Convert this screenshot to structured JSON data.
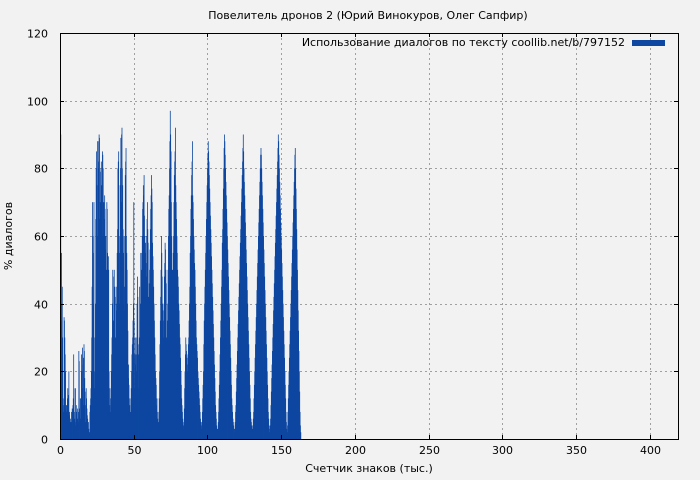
{
  "chart_data": {
    "type": "bar",
    "title": "Повелитель дронов 2 (Юрий Винокуров, Олег Сапфир)",
    "xlabel": "Счетчик знаков (тыс.)",
    "ylabel": "% диалогов",
    "xlim": [
      0,
      419
    ],
    "ylim": [
      0,
      120
    ],
    "xticks": [
      0,
      50,
      100,
      150,
      200,
      250,
      300,
      350,
      400
    ],
    "yticks": [
      0,
      20,
      40,
      60,
      80,
      100,
      120
    ],
    "grid": true,
    "legend_position": "top-right",
    "series": [
      {
        "name": "Использование диалогов по тексту coollib.net/b/797152",
        "color": "#0d47a1",
        "x_start": 0,
        "x_step": 0.25,
        "values": [
          94,
          90,
          40,
          55,
          35,
          45,
          30,
          12,
          10,
          8,
          36,
          35,
          30,
          25,
          20,
          9,
          10,
          8,
          10,
          12,
          15,
          13,
          8,
          20,
          7,
          8,
          5,
          6,
          5,
          5,
          8,
          5,
          9,
          8,
          10,
          12,
          25,
          15,
          8,
          6,
          5,
          15,
          4,
          10,
          8,
          5,
          9,
          6,
          5,
          8,
          26,
          23,
          7,
          9,
          12,
          6,
          12,
          25,
          20,
          15,
          27,
          22,
          24,
          10,
          28,
          26,
          18,
          14,
          10,
          5,
          15,
          12,
          9,
          7,
          6,
          4,
          5,
          3,
          2,
          1,
          8,
          10,
          12,
          15,
          20,
          30,
          45,
          70,
          60,
          40,
          55,
          70,
          20,
          15,
          30,
          40,
          65,
          80,
          85,
          75,
          60,
          88,
          88,
          80,
          82,
          90,
          89,
          65,
          70,
          79,
          80,
          82,
          75,
          60,
          85,
          84,
          80,
          60,
          70,
          65,
          72,
          68,
          56,
          60,
          50,
          48,
          70,
          68,
          55,
          52,
          54,
          50,
          20,
          15,
          10,
          8,
          12,
          15,
          20,
          25,
          30,
          40,
          50,
          35,
          28,
          48,
          50,
          45,
          42,
          30,
          30,
          45,
          40,
          38,
          55,
          62,
          80,
          82,
          85,
          60,
          40,
          55,
          75,
          80,
          89,
          70,
          90,
          92,
          80,
          75,
          62,
          40,
          55,
          60,
          45,
          38,
          78,
          82,
          86,
          60,
          55,
          50,
          40,
          32,
          18,
          22,
          16,
          12,
          10,
          8,
          6,
          12,
          15,
          20,
          25,
          28,
          30,
          35,
          40,
          70,
          35,
          25,
          15,
          30,
          22,
          25,
          20,
          30,
          40,
          48,
          42,
          28,
          15,
          25,
          30,
          45,
          35,
          40,
          55,
          50,
          45,
          55,
          60,
          68,
          70,
          75,
          72,
          78,
          66,
          60,
          55,
          58,
          52,
          48,
          60,
          65,
          70,
          62,
          58,
          40,
          42,
          46,
          50,
          56,
          62,
          68,
          72,
          78,
          74,
          70,
          58,
          54,
          50,
          45,
          40,
          35,
          30,
          25,
          20,
          18,
          16,
          10,
          12,
          8,
          6,
          5,
          4,
          8,
          12,
          20,
          28,
          35,
          42,
          50,
          60,
          55,
          48,
          40,
          38,
          35,
          30,
          40,
          48,
          52,
          58,
          56,
          50,
          46,
          30,
          25,
          35,
          40,
          50,
          60,
          68,
          72,
          80,
          88,
          97,
          90,
          85,
          70,
          60,
          50,
          45,
          50,
          55,
          60,
          70,
          78,
          82,
          85,
          92,
          75,
          70,
          65,
          60,
          55,
          50,
          48,
          45,
          40,
          38,
          34,
          30,
          28,
          24,
          20,
          16,
          12,
          10,
          8,
          6,
          4,
          3,
          5,
          9,
          15,
          20,
          25,
          30,
          28,
          26,
          24,
          20,
          22,
          25,
          28,
          30,
          35,
          40,
          45,
          55,
          60,
          68,
          72,
          78,
          82,
          88,
          72,
          70,
          65,
          60,
          56,
          52,
          50,
          45,
          40,
          35,
          30,
          28,
          26,
          24,
          20,
          18,
          16,
          14,
          12,
          10,
          8,
          6,
          5,
          4,
          3,
          5,
          8,
          12,
          16,
          20,
          28,
          35,
          40,
          45,
          50,
          55,
          60,
          65,
          70,
          75,
          80,
          84,
          88,
          85,
          82,
          78,
          74,
          70,
          66,
          62,
          58,
          54,
          50,
          46,
          42,
          38,
          34,
          30,
          26,
          22,
          18,
          14,
          10,
          8,
          6,
          4,
          3,
          2,
          3,
          5,
          8,
          12,
          16,
          20,
          25,
          30,
          35,
          40,
          45,
          50,
          58,
          62,
          68,
          74,
          80,
          86,
          90,
          88,
          84,
          80,
          76,
          72,
          68,
          64,
          60,
          56,
          52,
          48,
          44,
          40,
          36,
          32,
          28,
          24,
          20,
          16,
          12,
          10,
          8,
          6,
          5,
          4,
          3,
          2,
          3,
          5,
          8,
          10,
          14,
          18,
          22,
          26,
          30,
          34,
          38,
          42,
          46,
          50,
          54,
          58,
          62,
          66,
          70,
          74,
          78,
          82,
          86,
          90,
          85,
          80,
          76,
          72,
          68,
          64,
          60,
          56,
          52,
          48,
          44,
          40,
          36,
          32,
          28,
          24,
          20,
          16,
          12,
          8,
          6,
          5,
          4,
          3,
          2,
          4,
          6,
          8,
          12,
          16,
          20,
          24,
          28,
          32,
          36,
          40,
          44,
          48,
          52,
          56,
          60,
          64,
          68,
          72,
          76,
          80,
          84,
          86,
          84,
          80,
          76,
          72,
          68,
          64,
          60,
          56,
          52,
          48,
          44,
          40,
          36,
          32,
          28,
          24,
          20,
          16,
          12,
          8,
          6,
          4,
          3,
          2,
          4,
          6,
          10,
          14,
          18,
          22,
          26,
          30,
          34,
          38,
          42,
          46,
          50,
          54,
          58,
          62,
          66,
          70,
          74,
          78,
          82,
          86,
          90,
          88,
          84,
          80,
          76,
          72,
          68,
          64,
          60,
          56,
          52,
          48,
          44,
          40,
          36,
          32,
          28,
          24,
          20,
          16,
          12,
          8,
          5,
          3,
          2,
          4,
          8,
          12,
          16,
          20,
          24,
          28,
          32,
          36,
          40,
          44,
          48,
          52,
          56,
          60,
          64,
          68,
          72,
          76,
          80,
          84,
          86,
          80,
          74,
          68,
          62,
          56,
          50,
          44,
          38,
          32,
          26,
          20,
          14,
          8,
          4,
          2
        ]
      }
    ]
  }
}
